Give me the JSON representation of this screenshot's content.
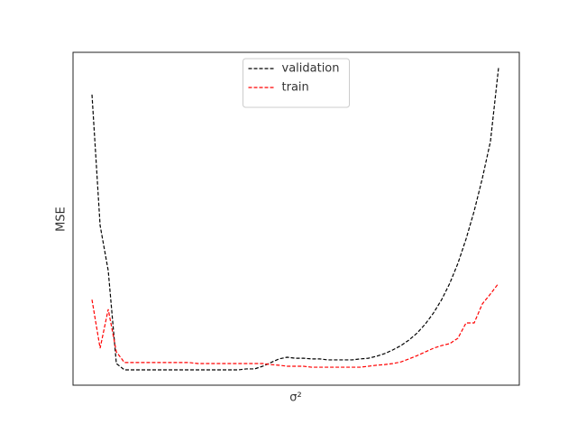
{
  "chart_data": {
    "type": "line",
    "x_label": "σ²",
    "y_label": "MSE",
    "x": [
      0,
      1,
      2,
      3,
      4,
      5,
      6,
      7,
      8,
      9,
      10,
      11,
      12,
      13,
      14,
      15,
      16,
      17,
      18,
      19,
      20,
      21,
      22,
      23,
      24,
      25,
      26,
      27,
      28,
      29,
      30,
      31,
      32,
      33,
      34,
      35,
      36,
      37,
      38,
      39,
      40,
      41,
      42,
      43,
      44,
      45,
      46,
      47,
      48,
      49,
      50
    ],
    "xlim": [
      -2.33,
      52.55
    ],
    "ylim": [
      0,
      100
    ],
    "legend": "upper center",
    "series": [
      {
        "name": "validation",
        "color": "#000000",
        "values": [
          87.3,
          48.0,
          34.4,
          6.5,
          4.6,
          4.6,
          4.6,
          4.6,
          4.6,
          4.6,
          4.6,
          4.6,
          4.6,
          4.6,
          4.6,
          4.6,
          4.6,
          4.6,
          4.6,
          4.9,
          4.9,
          5.7,
          6.8,
          7.9,
          8.4,
          8.1,
          8.1,
          7.9,
          7.9,
          7.6,
          7.6,
          7.6,
          7.6,
          7.9,
          8.1,
          8.7,
          9.5,
          10.6,
          11.9,
          13.6,
          15.7,
          18.4,
          21.7,
          25.7,
          30.6,
          36.6,
          43.9,
          52.3,
          62.1,
          73.2,
          95.4
        ]
      },
      {
        "name": "train",
        "color": "#ff0000",
        "values": [
          25.7,
          11.1,
          22.8,
          10.0,
          6.8,
          6.8,
          6.8,
          6.8,
          6.8,
          6.8,
          6.8,
          6.8,
          6.8,
          6.5,
          6.5,
          6.5,
          6.5,
          6.5,
          6.5,
          6.5,
          6.5,
          6.5,
          6.2,
          6.0,
          5.7,
          5.7,
          5.7,
          5.4,
          5.4,
          5.4,
          5.4,
          5.4,
          5.4,
          5.4,
          5.7,
          6.0,
          6.2,
          6.5,
          7.0,
          7.9,
          8.9,
          10.0,
          11.1,
          11.9,
          12.5,
          14.1,
          18.7,
          18.7,
          24.4,
          27.4,
          30.6
        ]
      }
    ]
  }
}
